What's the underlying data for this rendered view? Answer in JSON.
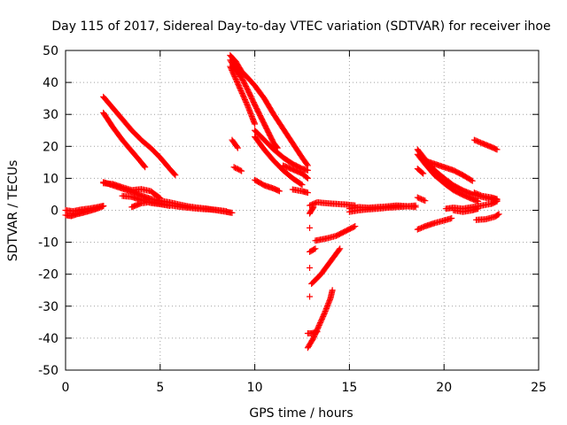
{
  "chart_data": {
    "type": "scatter",
    "title": "Day 115 of 2017, Sidereal Day-to-day VTEC variation (SDTVAR) for receiver ihoe",
    "xlabel": "GPS time / hours",
    "ylabel": "SDTVAR / TECUs",
    "xlim": [
      0,
      25
    ],
    "ylim": [
      -50,
      50
    ],
    "xticks": [
      "0",
      "5",
      "10",
      "15",
      "20",
      "25"
    ],
    "yticks": [
      "-50",
      "-40",
      "-30",
      "-20",
      "-10",
      "0",
      "10",
      "20",
      "30",
      "40",
      "50"
    ],
    "grid": true,
    "marker": "plus",
    "color": "#ff0000",
    "series": [
      {
        "points": [
          [
            0.0,
            -1.5
          ],
          [
            0.3,
            -1.8
          ],
          [
            0.6,
            -1.2
          ],
          [
            0.9,
            -0.8
          ],
          [
            1.2,
            -0.3
          ],
          [
            1.5,
            0.2
          ],
          [
            1.8,
            0.8
          ],
          [
            2.0,
            1.3
          ]
        ]
      },
      {
        "points": [
          [
            0.0,
            0.0
          ],
          [
            0.4,
            -0.3
          ],
          [
            0.8,
            0.2
          ],
          [
            1.2,
            0.5
          ],
          [
            1.6,
            0.9
          ],
          [
            2.0,
            1.4
          ]
        ]
      },
      {
        "points": [
          [
            2.0,
            35.5
          ],
          [
            2.5,
            32.0
          ],
          [
            3.0,
            28.5
          ],
          [
            3.5,
            25.0
          ],
          [
            4.0,
            22.0
          ],
          [
            4.5,
            19.5
          ],
          [
            5.0,
            16.5
          ],
          [
            5.5,
            13.0
          ],
          [
            5.8,
            11.0
          ]
        ]
      },
      {
        "points": [
          [
            2.0,
            30.5
          ],
          [
            2.5,
            26.0
          ],
          [
            3.0,
            22.0
          ],
          [
            3.5,
            18.5
          ],
          [
            4.0,
            15.0
          ],
          [
            4.2,
            13.5
          ]
        ]
      },
      {
        "points": [
          [
            2.0,
            8.5
          ],
          [
            2.5,
            8.2
          ],
          [
            3.0,
            7.2
          ],
          [
            3.5,
            6.3
          ],
          [
            4.0,
            6.6
          ],
          [
            4.5,
            6.0
          ],
          [
            5.0,
            3.8
          ]
        ]
      },
      {
        "points": [
          [
            2.0,
            8.8
          ],
          [
            2.5,
            7.8
          ],
          [
            3.0,
            6.8
          ],
          [
            3.5,
            5.8
          ],
          [
            4.0,
            4.6
          ],
          [
            4.5,
            3.6
          ],
          [
            5.0,
            3.0
          ],
          [
            5.5,
            2.5
          ],
          [
            6.0,
            1.8
          ],
          [
            6.5,
            1.2
          ],
          [
            7.0,
            0.8
          ],
          [
            7.5,
            0.5
          ],
          [
            8.0,
            0.0
          ],
          [
            8.5,
            -0.5
          ],
          [
            8.8,
            -0.8
          ]
        ]
      },
      {
        "points": [
          [
            3.5,
            1.0
          ],
          [
            4.0,
            2.2
          ],
          [
            4.5,
            2.6
          ],
          [
            5.0,
            2.1
          ],
          [
            5.5,
            1.6
          ],
          [
            6.0,
            1.1
          ],
          [
            6.5,
            0.8
          ],
          [
            7.0,
            0.5
          ],
          [
            7.5,
            0.3
          ],
          [
            8.0,
            0.1
          ],
          [
            8.5,
            -0.3
          ]
        ]
      },
      {
        "points": [
          [
            3.0,
            4.5
          ],
          [
            3.5,
            4.2
          ],
          [
            4.0,
            3.2
          ],
          [
            4.5,
            2.3
          ],
          [
            5.0,
            1.9
          ],
          [
            5.5,
            1.4
          ]
        ]
      },
      {
        "points": [
          [
            8.7,
            48.5
          ],
          [
            9.0,
            46.5
          ],
          [
            9.3,
            43.5
          ],
          [
            9.7,
            41.0
          ],
          [
            10.0,
            39.0
          ],
          [
            10.5,
            35.0
          ],
          [
            11.0,
            30.0
          ],
          [
            11.5,
            25.5
          ],
          [
            12.0,
            21.0
          ],
          [
            12.5,
            16.5
          ],
          [
            12.8,
            14.0
          ]
        ]
      },
      {
        "points": [
          [
            8.7,
            47.0
          ],
          [
            9.0,
            44.0
          ],
          [
            9.3,
            41.5
          ],
          [
            9.6,
            38.0
          ],
          [
            10.0,
            33.0
          ],
          [
            10.5,
            27.0
          ],
          [
            11.0,
            21.0
          ],
          [
            11.2,
            19.5
          ]
        ]
      },
      {
        "points": [
          [
            8.7,
            45.0
          ],
          [
            9.0,
            41.0
          ],
          [
            9.3,
            37.0
          ],
          [
            9.6,
            33.0
          ],
          [
            9.9,
            28.5
          ],
          [
            10.0,
            27.0
          ]
        ]
      },
      {
        "points": [
          [
            10.0,
            25.0
          ],
          [
            10.5,
            22.0
          ],
          [
            11.0,
            19.0
          ],
          [
            11.5,
            16.5
          ],
          [
            12.0,
            14.5
          ],
          [
            12.5,
            13.0
          ],
          [
            12.8,
            12.5
          ]
        ]
      },
      {
        "points": [
          [
            10.0,
            23.0
          ],
          [
            10.5,
            19.0
          ],
          [
            11.0,
            15.5
          ],
          [
            11.5,
            12.5
          ],
          [
            12.0,
            10.0
          ],
          [
            12.5,
            8.0
          ]
        ]
      },
      {
        "points": [
          [
            8.8,
            22.0
          ],
          [
            9.1,
            19.5
          ]
        ]
      },
      {
        "points": [
          [
            8.9,
            13.5
          ],
          [
            9.3,
            12.3
          ]
        ]
      },
      {
        "points": [
          [
            10.0,
            9.5
          ],
          [
            10.5,
            7.8
          ],
          [
            11.0,
            6.8
          ],
          [
            11.3,
            6.0
          ]
        ]
      },
      {
        "points": [
          [
            11.5,
            14.0
          ],
          [
            12.0,
            12.8
          ],
          [
            12.5,
            11.5
          ],
          [
            12.8,
            10.0
          ]
        ]
      },
      {
        "points": [
          [
            12.0,
            6.5
          ],
          [
            12.5,
            6.0
          ],
          [
            12.8,
            5.5
          ]
        ]
      },
      {
        "points": [
          [
            12.9,
            1.5
          ],
          [
            13.3,
            2.5
          ],
          [
            13.8,
            2.2
          ],
          [
            14.3,
            2.0
          ],
          [
            14.8,
            1.8
          ],
          [
            15.3,
            1.5
          ]
        ]
      },
      {
        "points": [
          [
            15.0,
            0.5
          ],
          [
            15.5,
            1.0
          ],
          [
            16.0,
            0.8
          ],
          [
            16.5,
            1.0
          ],
          [
            17.0,
            1.2
          ],
          [
            17.5,
            1.5
          ],
          [
            18.0,
            1.3
          ],
          [
            18.5,
            1.0
          ]
        ]
      },
      {
        "points": [
          [
            15.0,
            -0.5
          ],
          [
            15.5,
            0.0
          ],
          [
            16.0,
            0.3
          ],
          [
            16.5,
            0.5
          ],
          [
            17.0,
            0.8
          ],
          [
            17.5,
            1.0
          ],
          [
            18.0,
            1.2
          ],
          [
            18.5,
            1.5
          ]
        ]
      },
      {
        "points": [
          [
            12.9,
            -1.0
          ],
          [
            13.1,
            1.0
          ]
        ]
      },
      {
        "points": [
          [
            12.9,
            -5.5
          ]
        ]
      },
      {
        "points": [
          [
            12.9,
            -13.0
          ],
          [
            13.2,
            -12.0
          ]
        ]
      },
      {
        "points": [
          [
            12.9,
            -18.0
          ]
        ]
      },
      {
        "points": [
          [
            13.0,
            -23.0
          ],
          [
            13.5,
            -20.0
          ],
          [
            14.0,
            -16.0
          ],
          [
            14.5,
            -12.0
          ]
        ]
      },
      {
        "points": [
          [
            12.9,
            -27.0
          ]
        ]
      },
      {
        "points": [
          [
            13.2,
            -9.5
          ],
          [
            13.8,
            -8.8
          ],
          [
            14.3,
            -8.0
          ],
          [
            14.8,
            -6.5
          ],
          [
            15.3,
            -5.0
          ]
        ]
      },
      {
        "points": [
          [
            12.8,
            -38.5
          ],
          [
            13.0,
            -38.5
          ],
          [
            13.3,
            -38.0
          ]
        ]
      },
      {
        "points": [
          [
            12.8,
            -43.0
          ],
          [
            13.1,
            -40.0
          ],
          [
            13.4,
            -36.0
          ],
          [
            13.7,
            -32.0
          ],
          [
            14.0,
            -27.5
          ],
          [
            14.1,
            -25.0
          ]
        ]
      },
      {
        "points": [
          [
            18.6,
            19.0
          ],
          [
            19.0,
            16.0
          ],
          [
            19.5,
            12.5
          ],
          [
            20.0,
            10.0
          ],
          [
            20.5,
            7.8
          ],
          [
            21.0,
            6.2
          ],
          [
            21.5,
            5.0
          ],
          [
            22.0,
            4.2
          ],
          [
            22.5,
            3.5
          ],
          [
            22.8,
            3.2
          ]
        ]
      },
      {
        "points": [
          [
            18.6,
            17.5
          ],
          [
            19.0,
            14.5
          ],
          [
            19.5,
            11.0
          ],
          [
            20.0,
            8.5
          ],
          [
            20.5,
            6.3
          ],
          [
            21.0,
            4.8
          ],
          [
            21.5,
            3.5
          ],
          [
            21.8,
            2.8
          ]
        ]
      },
      {
        "points": [
          [
            19.0,
            15.5
          ],
          [
            19.5,
            14.5
          ],
          [
            20.0,
            13.5
          ],
          [
            20.5,
            12.5
          ],
          [
            21.0,
            11.0
          ],
          [
            21.5,
            9.2
          ]
        ]
      },
      {
        "points": [
          [
            18.6,
            13.0
          ],
          [
            18.9,
            11.5
          ]
        ]
      },
      {
        "points": [
          [
            18.6,
            4.0
          ],
          [
            19.0,
            3.0
          ]
        ]
      },
      {
        "points": [
          [
            18.6,
            -6.0
          ],
          [
            19.0,
            -5.0
          ],
          [
            19.5,
            -4.0
          ],
          [
            20.0,
            -3.2
          ],
          [
            20.4,
            -2.5
          ]
        ]
      },
      {
        "points": [
          [
            20.1,
            0.5
          ],
          [
            20.5,
            0.8
          ],
          [
            21.0,
            0.5
          ],
          [
            21.5,
            1.0
          ],
          [
            22.0,
            1.5
          ],
          [
            22.5,
            2.0
          ],
          [
            22.8,
            2.8
          ]
        ]
      },
      {
        "points": [
          [
            20.5,
            0.0
          ],
          [
            21.0,
            -0.5
          ],
          [
            21.5,
            0.0
          ],
          [
            21.8,
            0.5
          ]
        ]
      },
      {
        "points": [
          [
            21.6,
            5.5
          ],
          [
            22.0,
            4.5
          ],
          [
            22.5,
            4.0
          ],
          [
            22.8,
            3.5
          ]
        ]
      },
      {
        "points": [
          [
            21.7,
            -3.0
          ],
          [
            22.2,
            -2.8
          ],
          [
            22.7,
            -2.0
          ],
          [
            22.9,
            -1.2
          ]
        ]
      },
      {
        "points": [
          [
            21.6,
            22.0
          ],
          [
            22.0,
            21.0
          ],
          [
            22.5,
            19.8
          ],
          [
            22.8,
            19.0
          ]
        ]
      }
    ]
  }
}
